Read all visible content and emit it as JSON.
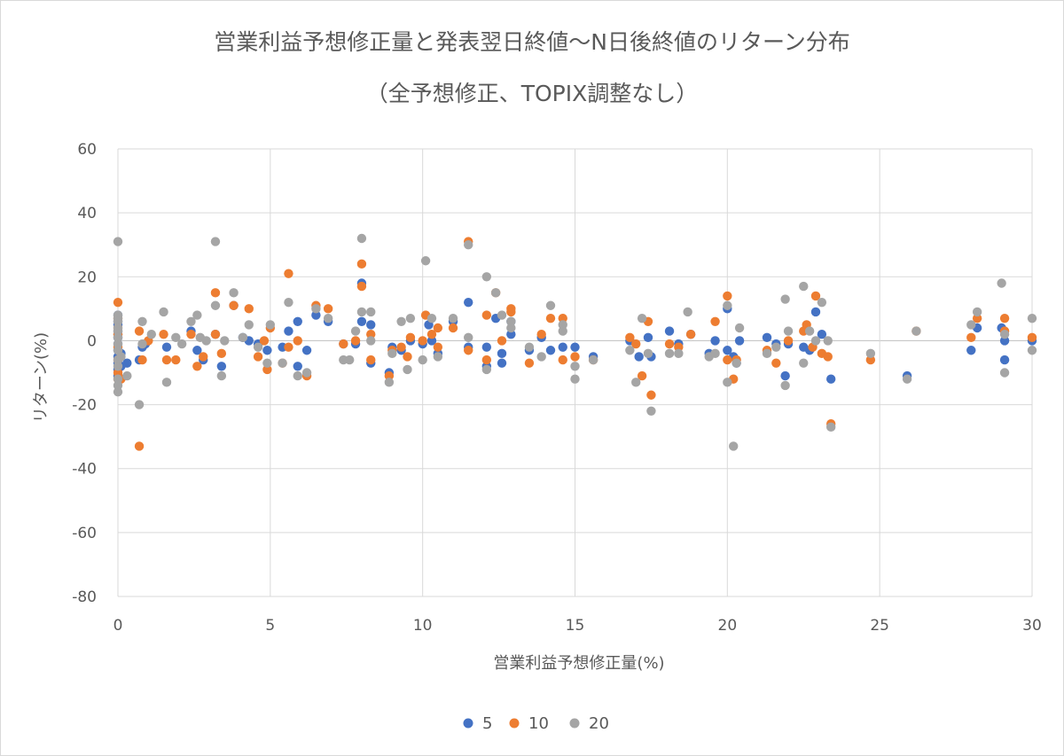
{
  "chart_data": {
    "type": "scatter",
    "title": "営業利益予想修正量と発表翌日終値～N日後終値のリターン分布",
    "subtitle": "（全予想修正、TOPIX調整なし）",
    "xlabel": "営業利益予想修正量(%)",
    "ylabel": "リターン(%)",
    "xlim": [
      0,
      30
    ],
    "ylim": [
      -80,
      60
    ],
    "x_ticks": [
      "0",
      "5",
      "10",
      "15",
      "20",
      "25",
      "30"
    ],
    "y_ticks": [
      "60",
      "40",
      "20",
      "0",
      "-20",
      "-40",
      "-60",
      "-80"
    ],
    "grid": true,
    "legend_position": "bottom",
    "series": [
      {
        "name": "5",
        "color": "#4472c4",
        "points": [
          [
            0,
            8
          ],
          [
            0,
            6
          ],
          [
            0,
            5
          ],
          [
            0,
            3
          ],
          [
            0,
            2
          ],
          [
            0,
            1
          ],
          [
            0,
            -1
          ],
          [
            0,
            -3
          ],
          [
            0,
            -5
          ],
          [
            0,
            -7
          ],
          [
            0,
            -9
          ],
          [
            0,
            -11
          ],
          [
            0.1,
            -4
          ],
          [
            0.1,
            -8
          ],
          [
            0.3,
            -7
          ],
          [
            0.7,
            -6
          ],
          [
            0.8,
            -2
          ],
          [
            0.9,
            -1
          ],
          [
            1.6,
            -2
          ],
          [
            2.4,
            3
          ],
          [
            2.6,
            -3
          ],
          [
            2.8,
            -6
          ],
          [
            3.2,
            2
          ],
          [
            3.4,
            -8
          ],
          [
            3.8,
            11
          ],
          [
            4.1,
            1
          ],
          [
            4.3,
            0
          ],
          [
            4.6,
            -1
          ],
          [
            4.9,
            -3
          ],
          [
            5.4,
            -2
          ],
          [
            5.6,
            3
          ],
          [
            5.9,
            -8
          ],
          [
            5.9,
            6
          ],
          [
            6.2,
            -3
          ],
          [
            6.5,
            8
          ],
          [
            6.9,
            6
          ],
          [
            7.4,
            -1
          ],
          [
            7.8,
            -1
          ],
          [
            8,
            18
          ],
          [
            8,
            6
          ],
          [
            8.3,
            -7
          ],
          [
            8.3,
            5
          ],
          [
            8.9,
            -10
          ],
          [
            9,
            -2
          ],
          [
            9.3,
            -3
          ],
          [
            9.6,
            0
          ],
          [
            10,
            -1
          ],
          [
            10.2,
            5
          ],
          [
            10.3,
            0
          ],
          [
            10.5,
            -4
          ],
          [
            11,
            6
          ],
          [
            11.5,
            12
          ],
          [
            11.5,
            -2
          ],
          [
            12.1,
            -8
          ],
          [
            12.1,
            -2
          ],
          [
            12.4,
            7
          ],
          [
            12.6,
            -7
          ],
          [
            12.6,
            -4
          ],
          [
            12.9,
            2
          ],
          [
            12.9,
            6
          ],
          [
            13.5,
            -3
          ],
          [
            13.9,
            1
          ],
          [
            14.2,
            -3
          ],
          [
            14.6,
            -2
          ],
          [
            15,
            -2
          ],
          [
            15.6,
            -5
          ],
          [
            16.8,
            0
          ],
          [
            17.1,
            -5
          ],
          [
            17.4,
            1
          ],
          [
            17.5,
            -5
          ],
          [
            18.1,
            3
          ],
          [
            18.4,
            -1
          ],
          [
            18.8,
            2
          ],
          [
            19.4,
            -4
          ],
          [
            19.6,
            0
          ],
          [
            20,
            10
          ],
          [
            20,
            -3
          ],
          [
            20.2,
            -5
          ],
          [
            20.3,
            -7
          ],
          [
            20.4,
            0
          ],
          [
            21.3,
            1
          ],
          [
            21.6,
            -1
          ],
          [
            21.9,
            -11
          ],
          [
            22,
            -1
          ],
          [
            22.5,
            -2
          ],
          [
            22.7,
            -3
          ],
          [
            22.9,
            9
          ],
          [
            23.1,
            2
          ],
          [
            23.4,
            -12
          ],
          [
            25.9,
            -11
          ],
          [
            28,
            -3
          ],
          [
            28.2,
            4
          ],
          [
            29,
            4
          ],
          [
            29.1,
            0
          ],
          [
            29.1,
            -6
          ],
          [
            30,
            0
          ]
        ]
      },
      {
        "name": "10",
        "color": "#ed7d31",
        "points": [
          [
            0,
            12
          ],
          [
            0,
            7
          ],
          [
            0,
            4
          ],
          [
            0,
            2
          ],
          [
            0,
            -2
          ],
          [
            0,
            -6
          ],
          [
            0,
            -10
          ],
          [
            0,
            -12
          ],
          [
            0.1,
            -12
          ],
          [
            0.7,
            -33
          ],
          [
            0.7,
            3
          ],
          [
            0.8,
            -6
          ],
          [
            1,
            0
          ],
          [
            1.5,
            2
          ],
          [
            1.6,
            -6
          ],
          [
            1.9,
            -6
          ],
          [
            2.4,
            2
          ],
          [
            2.6,
            -8
          ],
          [
            2.8,
            -5
          ],
          [
            3.2,
            15
          ],
          [
            3.2,
            2
          ],
          [
            3.4,
            -4
          ],
          [
            3.8,
            11
          ],
          [
            4.3,
            10
          ],
          [
            4.6,
            -5
          ],
          [
            4.8,
            0
          ],
          [
            4.9,
            -9
          ],
          [
            5,
            4
          ],
          [
            5.4,
            -7
          ],
          [
            5.6,
            21
          ],
          [
            5.6,
            -2
          ],
          [
            5.9,
            0
          ],
          [
            6.2,
            -11
          ],
          [
            6.5,
            11
          ],
          [
            6.9,
            10
          ],
          [
            7.4,
            -1
          ],
          [
            7.8,
            0
          ],
          [
            8,
            17
          ],
          [
            8,
            24
          ],
          [
            8.3,
            -6
          ],
          [
            8.3,
            2
          ],
          [
            8.9,
            -11
          ],
          [
            9,
            -3
          ],
          [
            9.3,
            -2
          ],
          [
            9.5,
            -5
          ],
          [
            9.6,
            1
          ],
          [
            10,
            0
          ],
          [
            10.1,
            8
          ],
          [
            10.3,
            2
          ],
          [
            10.5,
            4
          ],
          [
            10.5,
            -2
          ],
          [
            11,
            4
          ],
          [
            11.5,
            31
          ],
          [
            11.5,
            -3
          ],
          [
            12.1,
            8
          ],
          [
            12.1,
            -6
          ],
          [
            12.4,
            15
          ],
          [
            12.6,
            0
          ],
          [
            12.9,
            10
          ],
          [
            12.9,
            9
          ],
          [
            13.5,
            -7
          ],
          [
            13.9,
            2
          ],
          [
            14.2,
            7
          ],
          [
            14.6,
            7
          ],
          [
            14.6,
            -6
          ],
          [
            15,
            -5
          ],
          [
            15.6,
            -6
          ],
          [
            16.8,
            1
          ],
          [
            17,
            -1
          ],
          [
            17.2,
            -11
          ],
          [
            17.4,
            6
          ],
          [
            17.5,
            -17
          ],
          [
            18.1,
            -1
          ],
          [
            18.4,
            -2
          ],
          [
            18.8,
            2
          ],
          [
            19.6,
            6
          ],
          [
            20,
            14
          ],
          [
            20,
            -6
          ],
          [
            20.2,
            -12
          ],
          [
            20.3,
            -6
          ],
          [
            21.3,
            -3
          ],
          [
            21.6,
            -7
          ],
          [
            22,
            0
          ],
          [
            22.5,
            3
          ],
          [
            22.6,
            5
          ],
          [
            22.8,
            -2
          ],
          [
            22.9,
            14
          ],
          [
            23.1,
            -4
          ],
          [
            23.3,
            -5
          ],
          [
            23.4,
            -26
          ],
          [
            24.7,
            -6
          ],
          [
            26.2,
            3
          ],
          [
            28,
            1
          ],
          [
            28.2,
            7
          ],
          [
            29.1,
            7
          ],
          [
            29.1,
            3
          ],
          [
            30,
            1
          ]
        ]
      },
      {
        "name": "20",
        "color": "#a5a5a5",
        "points": [
          [
            0,
            31
          ],
          [
            0,
            8
          ],
          [
            0,
            7
          ],
          [
            0,
            6
          ],
          [
            0,
            4
          ],
          [
            0,
            3
          ],
          [
            0,
            1
          ],
          [
            0,
            -1
          ],
          [
            0,
            -3
          ],
          [
            0,
            -6
          ],
          [
            0,
            -8
          ],
          [
            0,
            -12
          ],
          [
            0,
            -14
          ],
          [
            0,
            -16
          ],
          [
            0.1,
            -5
          ],
          [
            0.3,
            -11
          ],
          [
            0.7,
            -20
          ],
          [
            0.8,
            -1
          ],
          [
            0.8,
            6
          ],
          [
            1.1,
            2
          ],
          [
            1.5,
            9
          ],
          [
            1.6,
            -13
          ],
          [
            1.9,
            1
          ],
          [
            2.1,
            -1
          ],
          [
            2.4,
            6
          ],
          [
            2.6,
            8
          ],
          [
            2.7,
            1
          ],
          [
            2.9,
            0
          ],
          [
            3.2,
            31
          ],
          [
            3.2,
            11
          ],
          [
            3.4,
            -11
          ],
          [
            3.5,
            0
          ],
          [
            3.8,
            15
          ],
          [
            4.1,
            1
          ],
          [
            4.3,
            5
          ],
          [
            4.6,
            -2
          ],
          [
            4.9,
            -7
          ],
          [
            5,
            5
          ],
          [
            5.4,
            -7
          ],
          [
            5.6,
            12
          ],
          [
            5.9,
            -11
          ],
          [
            6.2,
            -10
          ],
          [
            6.5,
            10
          ],
          [
            6.9,
            7
          ],
          [
            7.4,
            -6
          ],
          [
            7.6,
            -6
          ],
          [
            7.8,
            3
          ],
          [
            8,
            32
          ],
          [
            8,
            9
          ],
          [
            8.3,
            9
          ],
          [
            8.3,
            0
          ],
          [
            8.9,
            -13
          ],
          [
            9,
            -4
          ],
          [
            9.3,
            6
          ],
          [
            9.5,
            -9
          ],
          [
            9.6,
            7
          ],
          [
            10,
            -6
          ],
          [
            10.1,
            25
          ],
          [
            10.3,
            7
          ],
          [
            10.5,
            -5
          ],
          [
            11,
            7
          ],
          [
            11.5,
            30
          ],
          [
            11.5,
            1
          ],
          [
            12.1,
            20
          ],
          [
            12.1,
            -9
          ],
          [
            12.4,
            15
          ],
          [
            12.6,
            8
          ],
          [
            12.9,
            4
          ],
          [
            12.9,
            6
          ],
          [
            13.5,
            -2
          ],
          [
            13.9,
            -5
          ],
          [
            14.2,
            11
          ],
          [
            14.6,
            5
          ],
          [
            14.6,
            3
          ],
          [
            15,
            -12
          ],
          [
            15,
            -8
          ],
          [
            15.6,
            -6
          ],
          [
            16.8,
            -3
          ],
          [
            17,
            -13
          ],
          [
            17.2,
            7
          ],
          [
            17.4,
            -4
          ],
          [
            17.5,
            -22
          ],
          [
            18.1,
            -4
          ],
          [
            18.4,
            -4
          ],
          [
            18.7,
            9
          ],
          [
            19.4,
            -5
          ],
          [
            19.6,
            -4
          ],
          [
            20,
            -13
          ],
          [
            20,
            11
          ],
          [
            20.2,
            -33
          ],
          [
            20.3,
            -7
          ],
          [
            20.4,
            4
          ],
          [
            21.3,
            -4
          ],
          [
            21.6,
            -2
          ],
          [
            21.9,
            13
          ],
          [
            21.9,
            -14
          ],
          [
            22,
            3
          ],
          [
            22.5,
            -7
          ],
          [
            22.5,
            17
          ],
          [
            22.7,
            3
          ],
          [
            22.9,
            0
          ],
          [
            23.1,
            12
          ],
          [
            23.3,
            0
          ],
          [
            23.4,
            -27
          ],
          [
            24.7,
            -4
          ],
          [
            25.9,
            -12
          ],
          [
            26.2,
            3
          ],
          [
            28,
            5
          ],
          [
            28.2,
            9
          ],
          [
            29,
            18
          ],
          [
            29.1,
            -10
          ],
          [
            29.1,
            2
          ],
          [
            30,
            7
          ],
          [
            30,
            -3
          ]
        ]
      }
    ]
  }
}
